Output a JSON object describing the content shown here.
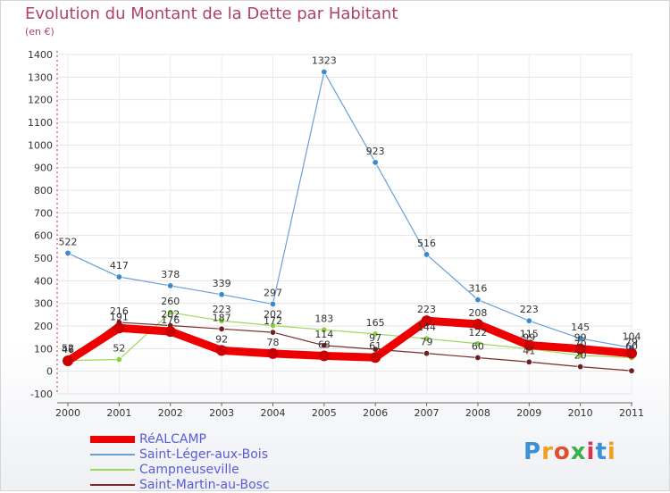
{
  "title": "Evolution du Montant de la Dette par Habitant",
  "unit": "(en €)",
  "logo": {
    "text": "Proxiti",
    "letter_colors": [
      "#3a8fd8",
      "#f0a020",
      "#e05030",
      "#3ab04a",
      "#e03050",
      "#3a8fd8",
      "#f0a020"
    ]
  },
  "chart_data": {
    "type": "line",
    "title": "Evolution du Montant de la Dette par Habitant",
    "ylabel": "(en €)",
    "xlabel": "",
    "x": [
      "2000",
      "2001",
      "2002",
      "2003",
      "2004",
      "2005",
      "2006",
      "2007",
      "2008",
      "2009",
      "2010",
      "2011"
    ],
    "ylim": [
      -100,
      1400
    ],
    "yticks": [
      -100,
      0,
      100,
      200,
      300,
      400,
      500,
      600,
      700,
      800,
      900,
      1000,
      1100,
      1200,
      1300,
      1400
    ],
    "grid": true,
    "legend": "bottom-left",
    "series": [
      {
        "name": "Saint-Léger-aux-Bois",
        "color": "#6a9fd8",
        "marker": "#3a8ad0",
        "width": 1.2,
        "values": [
          522,
          417,
          378,
          339,
          297,
          1323,
          923,
          516,
          316,
          223,
          145,
          104
        ],
        "labels": [
          "522",
          "417",
          "378",
          "339",
          "297",
          "1323",
          "923",
          "516",
          "316",
          "223",
          "145",
          "104"
        ]
      },
      {
        "name": "Campneuseville",
        "color": "#9ed85a",
        "marker": "#8ace3e",
        "width": 1.2,
        "values": [
          47,
          52,
          260,
          223,
          202,
          183,
          165,
          144,
          122,
          99,
          70,
          60
        ],
        "labels": [
          "47",
          "52",
          "260",
          "223",
          "202",
          "183",
          "165",
          "144",
          "122",
          "99",
          "70",
          "60"
        ]
      },
      {
        "name": "Saint-Martin-au-Bosc",
        "color": "#7a2a2a",
        "marker": "#6a2020",
        "width": 1.2,
        "values": [
          52,
          216,
          202,
          187,
          172,
          114,
          97,
          79,
          60,
          41,
          20,
          2
        ],
        "labels": [
          "52",
          "216",
          "202",
          "187",
          "172",
          "114",
          "97",
          "79",
          "60",
          "41",
          "20",
          ""
        ]
      },
      {
        "name": "RéALCAMP",
        "color": "#ee0000",
        "marker": "#cc0000",
        "width": 9,
        "values": [
          46,
          191,
          176,
          92,
          78,
          68,
          61,
          223,
          208,
          115,
          99,
          79
        ],
        "labels": [
          "46",
          "191",
          "176",
          "92",
          "78",
          "68",
          "61",
          "223",
          "208",
          "115",
          "99",
          "79"
        ]
      }
    ]
  }
}
